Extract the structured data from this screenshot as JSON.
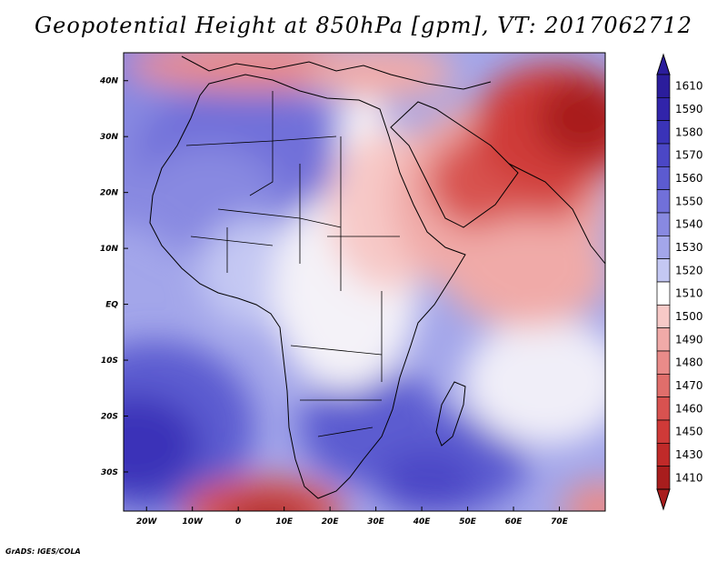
{
  "title": "Geopotential Height at 850hPa [gpm], VT: 2017062712",
  "footer": "GrADS: IGES/COLA",
  "map": {
    "lon_range": [
      -25,
      80
    ],
    "lat_range": [
      -37,
      45
    ],
    "lat_ticks": [
      {
        "value": 40,
        "label": "40N"
      },
      {
        "value": 30,
        "label": "30N"
      },
      {
        "value": 20,
        "label": "20N"
      },
      {
        "value": 10,
        "label": "10N"
      },
      {
        "value": 0,
        "label": "EQ"
      },
      {
        "value": -10,
        "label": "10S"
      },
      {
        "value": -20,
        "label": "20S"
      },
      {
        "value": -30,
        "label": "30S"
      }
    ],
    "lon_ticks": [
      {
        "value": -20,
        "label": "20W"
      },
      {
        "value": -10,
        "label": "10W"
      },
      {
        "value": 0,
        "label": "0"
      },
      {
        "value": 10,
        "label": "10E"
      },
      {
        "value": 20,
        "label": "20E"
      },
      {
        "value": 30,
        "label": "30E"
      },
      {
        "value": 40,
        "label": "40E"
      },
      {
        "value": 50,
        "label": "50E"
      },
      {
        "value": 60,
        "label": "60E"
      },
      {
        "value": 70,
        "label": "70E"
      }
    ]
  },
  "colorbar": {
    "levels": [
      {
        "label": "1610",
        "color": "#2b1d9c"
      },
      {
        "label": "1590",
        "color": "#3124aa"
      },
      {
        "label": "1580",
        "color": "#3a33b8"
      },
      {
        "label": "1570",
        "color": "#4b47c6"
      },
      {
        "label": "1560",
        "color": "#5c5bd0"
      },
      {
        "label": "1550",
        "color": "#7170d9"
      },
      {
        "label": "1540",
        "color": "#8889e1"
      },
      {
        "label": "1530",
        "color": "#a3a6ea"
      },
      {
        "label": "1520",
        "color": "#c4c8f3"
      },
      {
        "label": "1510",
        "color": "#ffffff"
      },
      {
        "label": "1500",
        "color": "#f7c9c7"
      },
      {
        "label": "1490",
        "color": "#f0aaa8"
      },
      {
        "label": "1480",
        "color": "#e98b89"
      },
      {
        "label": "1470",
        "color": "#e06e6b"
      },
      {
        "label": "1460",
        "color": "#d85250"
      },
      {
        "label": "1450",
        "color": "#cf3a38"
      },
      {
        "label": "1430",
        "color": "#c02a29"
      },
      {
        "label": "1410",
        "color": "#a81d1d"
      }
    ],
    "top_arrow_color": "#2b1d9c",
    "bottom_arrow_color": "#a81d1d"
  }
}
